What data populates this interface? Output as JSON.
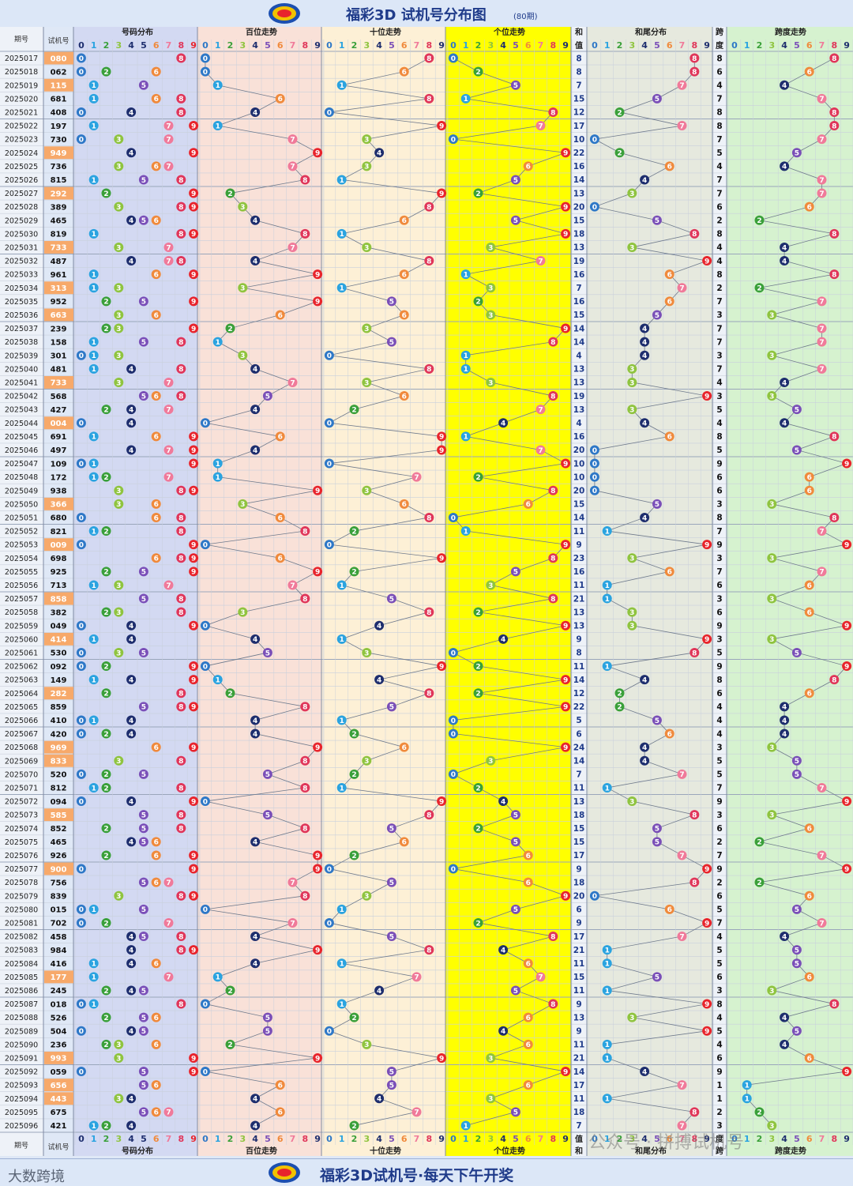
{
  "title": "福彩3D 试机号分布图",
  "period_label": "(80期)",
  "footer_brand": "大数跨境",
  "footer_text": "福彩3D试机号·每天下午开奖",
  "watermark": "公众号 · 拼搏试机号",
  "headers": {
    "period": "期号",
    "number": "试机号",
    "dist": "号码分布",
    "hundreds": "百位走势",
    "tens": "十位走势",
    "units": "个位走势",
    "sum_top": "和",
    "sum_bottom": "值",
    "sum_tail": "和尾分布",
    "span_top": "跨",
    "span_bottom": "度",
    "span_trend": "跨度走势"
  },
  "digits": [
    "0",
    "1",
    "2",
    "3",
    "4",
    "5",
    "6",
    "7",
    "8",
    "9"
  ],
  "colors": {
    "d0": "#2e78c7",
    "d1": "#2aa3e0",
    "d2": "#3aa03a",
    "d3": "#8fc43f",
    "d4": "#1e2e6e",
    "d5": "#7a4fb8",
    "d6": "#f08a3c",
    "d7": "#f07a9a",
    "d8": "#e0365a",
    "d9": "#e8242c",
    "group_highlight": "#f7a96a",
    "units_band": "#ffff00"
  },
  "chart_data": {
    "type": "table",
    "periods": [
      "2025017",
      "2025018",
      "2025019",
      "2025020",
      "2025021",
      "2025022",
      "2025023",
      "2025024",
      "2025025",
      "2025026",
      "2025027",
      "2025028",
      "2025029",
      "2025030",
      "2025031",
      "2025032",
      "2025033",
      "2025034",
      "2025035",
      "2025036",
      "2025037",
      "2025038",
      "2025039",
      "2025040",
      "2025041",
      "2025042",
      "2025043",
      "2025044",
      "2025045",
      "2025046",
      "2025047",
      "2025048",
      "2025049",
      "2025050",
      "2025051",
      "2025052",
      "2025053",
      "2025054",
      "2025055",
      "2025056",
      "2025057",
      "2025058",
      "2025059",
      "2025060",
      "2025061",
      "2025062",
      "2025063",
      "2025064",
      "2025065",
      "2025066",
      "2025067",
      "2025068",
      "2025069",
      "2025070",
      "2025071",
      "2025072",
      "2025073",
      "2025074",
      "2025075",
      "2025076",
      "2025077",
      "2025078",
      "2025079",
      "2025080",
      "2025081",
      "2025082",
      "2025083",
      "2025084",
      "2025085",
      "2025086",
      "2025087",
      "2025088",
      "2025089",
      "2025090",
      "2025091",
      "2025092",
      "2025093",
      "2025094",
      "2025095",
      "2025096"
    ],
    "numbers": [
      "080",
      "062",
      "115",
      "681",
      "408",
      "197",
      "730",
      "949",
      "736",
      "815",
      "292",
      "389",
      "465",
      "819",
      "733",
      "487",
      "961",
      "313",
      "952",
      "663",
      "239",
      "158",
      "301",
      "481",
      "733",
      "568",
      "427",
      "004",
      "691",
      "497",
      "109",
      "172",
      "938",
      "366",
      "680",
      "821",
      "009",
      "698",
      "925",
      "713",
      "858",
      "382",
      "049",
      "414",
      "530",
      "092",
      "149",
      "282",
      "859",
      "410",
      "420",
      "969",
      "833",
      "520",
      "812",
      "094",
      "585",
      "852",
      "465",
      "926",
      "900",
      "756",
      "839",
      "015",
      "702",
      "458",
      "984",
      "416",
      "177",
      "245",
      "018",
      "526",
      "504",
      "236",
      "993",
      "059",
      "656",
      "443",
      "675",
      "421"
    ],
    "sums": [
      8,
      8,
      7,
      15,
      12,
      17,
      10,
      22,
      16,
      14,
      13,
      20,
      15,
      18,
      13,
      19,
      16,
      7,
      16,
      15,
      14,
      14,
      4,
      13,
      13,
      19,
      13,
      4,
      16,
      20,
      10,
      10,
      20,
      15,
      14,
      11,
      9,
      23,
      16,
      11,
      21,
      13,
      13,
      9,
      8,
      11,
      14,
      12,
      22,
      5,
      6,
      24,
      14,
      7,
      11,
      13,
      18,
      15,
      15,
      17,
      9,
      18,
      20,
      6,
      9,
      17,
      21,
      11,
      15,
      11,
      9,
      13,
      9,
      11,
      21,
      14,
      17,
      11,
      18,
      7
    ],
    "spans": [
      8,
      6,
      4,
      7,
      8,
      8,
      7,
      5,
      4,
      7,
      7,
      6,
      2,
      8,
      4,
      4,
      8,
      2,
      7,
      3,
      7,
      7,
      3,
      7,
      4,
      3,
      5,
      4,
      8,
      5,
      9,
      6,
      6,
      3,
      8,
      7,
      9,
      3,
      7,
      6,
      3,
      6,
      9,
      3,
      5,
      9,
      8,
      6,
      4,
      4,
      4,
      3,
      5,
      5,
      7,
      9,
      3,
      6,
      2,
      7,
      9,
      2,
      6,
      5,
      7,
      4,
      5,
      5,
      6,
      3,
      8,
      4,
      5,
      4,
      6,
      9,
      1,
      1,
      2,
      3
    ]
  }
}
